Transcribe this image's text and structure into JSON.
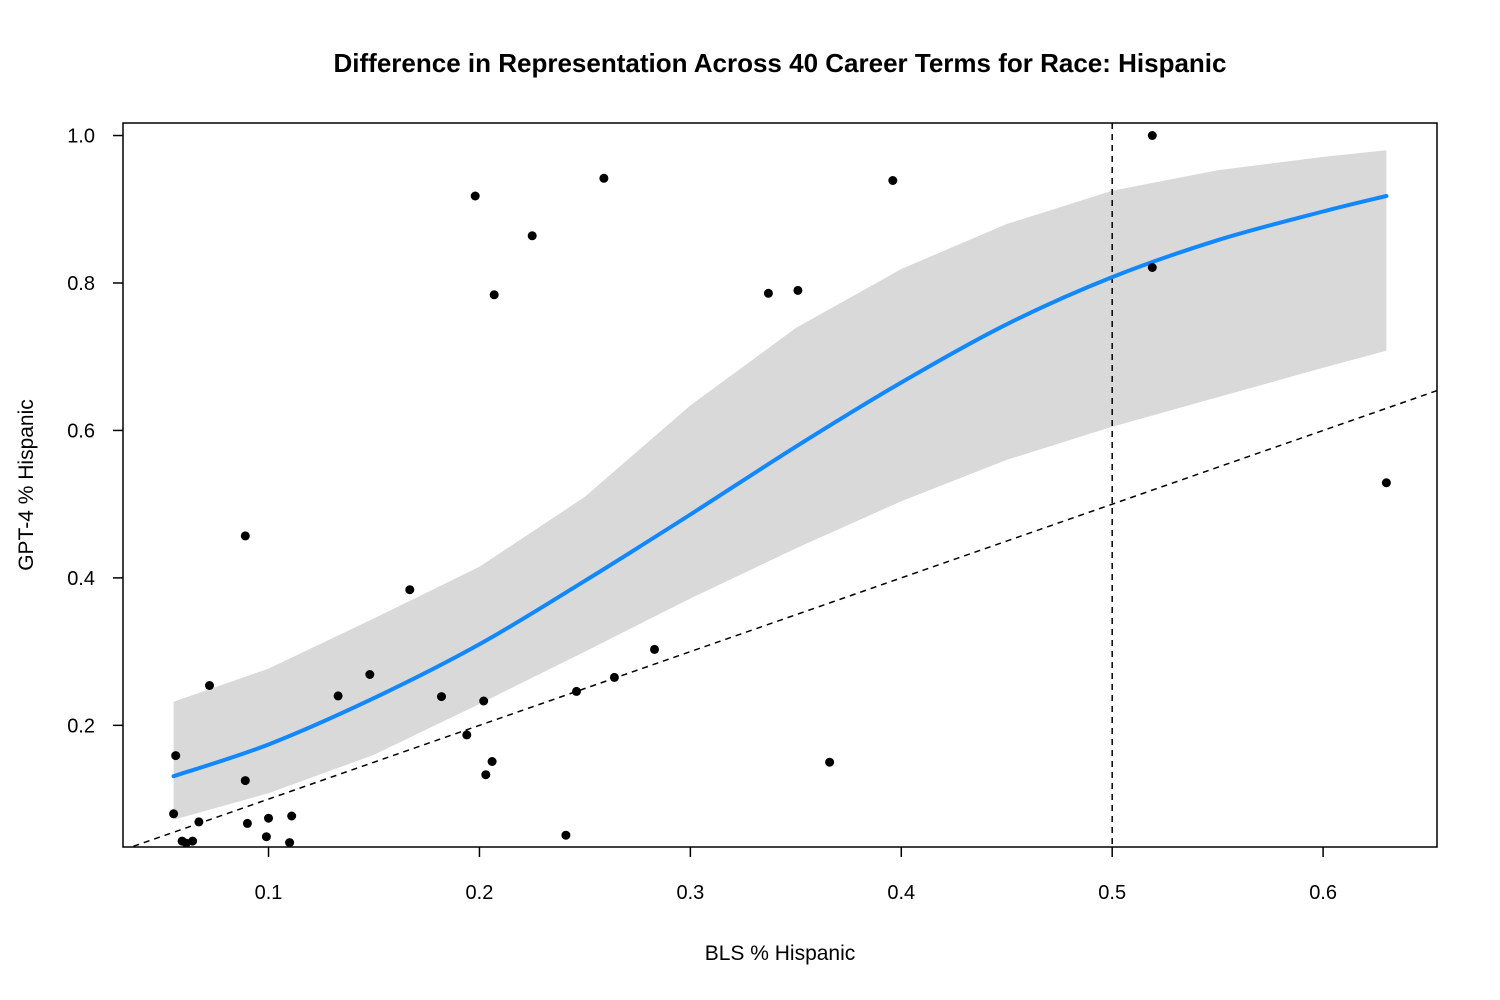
{
  "chart_data": {
    "type": "scatter",
    "title": "Difference in Representation Across 40 Career Terms for Race: Hispanic",
    "xlabel": "BLS % Hispanic",
    "ylabel": "GPT-4 % Hispanic",
    "xlim": [
      0.031,
      0.654
    ],
    "ylim": [
      0.035,
      1.017
    ],
    "x_ticks": [
      0.1,
      0.2,
      0.3,
      0.4,
      0.5,
      0.6
    ],
    "x_tick_labels": [
      "0.1",
      "0.2",
      "0.3",
      "0.4",
      "0.5",
      "0.6"
    ],
    "y_ticks": [
      0.2,
      0.4,
      0.6,
      0.8,
      1.0
    ],
    "y_tick_labels": [
      "0.2",
      "0.4",
      "0.6",
      "0.8",
      "1.0"
    ],
    "grid": false,
    "colors": {
      "points": "#000000",
      "fit_line": "#1188ff",
      "confidence_band": "#d9d9d9",
      "reference_lines": "#000000"
    },
    "points": {
      "x": [
        0.055,
        0.056,
        0.059,
        0.061,
        0.064,
        0.067,
        0.072,
        0.089,
        0.089,
        0.09,
        0.099,
        0.1,
        0.11,
        0.111,
        0.133,
        0.148,
        0.167,
        0.182,
        0.194,
        0.198,
        0.202,
        0.203,
        0.206,
        0.207,
        0.225,
        0.241,
        0.246,
        0.259,
        0.264,
        0.283,
        0.337,
        0.351,
        0.366,
        0.396,
        0.519,
        0.519,
        0.63
      ],
      "y": [
        0.08,
        0.159,
        0.043,
        0.04,
        0.043,
        0.069,
        0.254,
        0.457,
        0.125,
        0.067,
        0.049,
        0.074,
        0.041,
        0.077,
        0.24,
        0.269,
        0.384,
        0.239,
        0.187,
        0.918,
        0.233,
        0.133,
        0.151,
        0.784,
        0.864,
        0.051,
        0.246,
        0.942,
        0.265,
        0.303,
        0.786,
        0.79,
        0.15,
        0.939,
        1.0,
        0.821,
        0.529
      ]
    },
    "fit_curve": {
      "x": [
        0.055,
        0.1,
        0.15,
        0.2,
        0.25,
        0.3,
        0.35,
        0.4,
        0.45,
        0.5,
        0.55,
        0.6,
        0.63
      ],
      "y": [
        0.131,
        0.174,
        0.237,
        0.31,
        0.396,
        0.486,
        0.578,
        0.665,
        0.744,
        0.808,
        0.858,
        0.897,
        0.918
      ]
    },
    "confidence_band": {
      "x": [
        0.055,
        0.1,
        0.15,
        0.2,
        0.25,
        0.3,
        0.35,
        0.4,
        0.45,
        0.5,
        0.55,
        0.6,
        0.63
      ],
      "upper": [
        0.232,
        0.277,
        0.345,
        0.415,
        0.51,
        0.634,
        0.739,
        0.819,
        0.88,
        0.925,
        0.953,
        0.971,
        0.98
      ],
      "lower": [
        0.072,
        0.108,
        0.16,
        0.229,
        0.3,
        0.372,
        0.44,
        0.504,
        0.56,
        0.605,
        0.645,
        0.685,
        0.708
      ]
    },
    "reference_lines": [
      {
        "type": "diagonal",
        "style": "dashed",
        "slope": 1,
        "intercept": 0
      },
      {
        "type": "vertical",
        "style": "dashed",
        "x": 0.5
      }
    ]
  }
}
